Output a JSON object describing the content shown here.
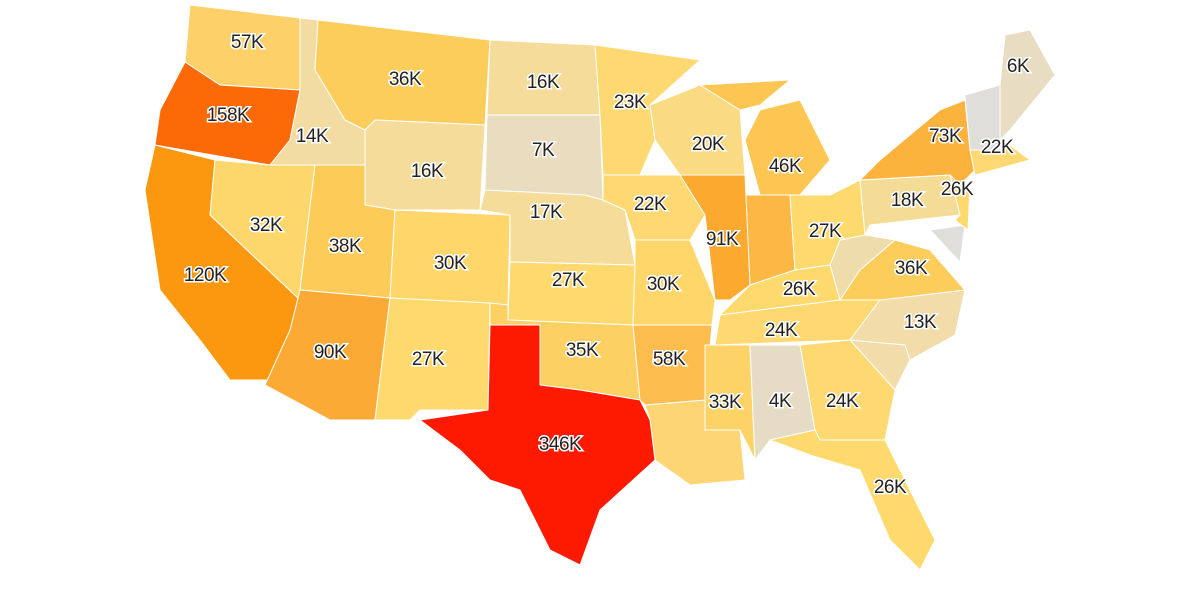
{
  "map": {
    "regions": [
      {
        "value": 57000,
        "label": "57K",
        "color": "#fdd06a"
      },
      {
        "value": 158000,
        "label": "158K",
        "color": "#fb6a07"
      },
      {
        "value": 120000,
        "label": "120K",
        "color": "#fb980f"
      },
      {
        "value": 14000,
        "label": "14K",
        "color": "#f3dca2"
      },
      {
        "value": 32000,
        "label": "32K",
        "color": "#fed76c"
      },
      {
        "value": 36000,
        "label": "36K",
        "color": "#fdcd5c"
      },
      {
        "value": 16000,
        "label": "16K",
        "color": "#f5dc9a"
      },
      {
        "value": 38000,
        "label": "38K",
        "color": "#fdcb58"
      },
      {
        "value": 30000,
        "label": "30K",
        "color": "#fed66a"
      },
      {
        "value": 90000,
        "label": "90K",
        "color": "#fbab35"
      },
      {
        "value": 27000,
        "label": "27K",
        "color": "#fed96e"
      },
      {
        "value": 16000,
        "label": "16K",
        "color": "#f5dc9a"
      },
      {
        "value": 7000,
        "label": "7K",
        "color": "#eadcbf"
      },
      {
        "value": 17000,
        "label": "17K",
        "color": "#f5dc98"
      },
      {
        "value": 27000,
        "label": "27K",
        "color": "#fed96e"
      },
      {
        "value": 35000,
        "label": "35K",
        "color": "#fdd063"
      },
      {
        "value": 346000,
        "label": "346K",
        "color": "#fe1a00"
      },
      {
        "value": 23000,
        "label": "23K",
        "color": "#fed870"
      },
      {
        "value": 22000,
        "label": "22K",
        "color": "#fdd873"
      },
      {
        "value": 30000,
        "label": "30K",
        "color": "#fed66a"
      },
      {
        "value": 58000,
        "label": "58K",
        "color": "#fdbc4e"
      },
      {
        "value": 20000,
        "label": "20K",
        "color": "#fada82"
      },
      {
        "value": 91000,
        "label": "91K",
        "color": "#fba92f"
      },
      {
        "value": 46000,
        "label": "46K",
        "color": "#fdc552"
      },
      {
        "value": 27000,
        "label": "27K",
        "color": "#fed96e"
      },
      {
        "value": 26000,
        "label": "26K",
        "color": "#fed96e"
      },
      {
        "value": 24000,
        "label": "24K",
        "color": "#fed870"
      },
      {
        "value": 33000,
        "label": "33K",
        "color": "#fdd266"
      },
      {
        "value": 4000,
        "label": "4K",
        "color": "#e6dcc6"
      },
      {
        "value": 24000,
        "label": "24K",
        "color": "#fed870"
      },
      {
        "value": 26000,
        "label": "26K",
        "color": "#fed96e"
      },
      {
        "value": 13000,
        "label": "13K",
        "color": "#f1dcaa"
      },
      {
        "value": 36000,
        "label": "36K",
        "color": "#fdcd5c"
      },
      {
        "value": 18000,
        "label": "18K",
        "color": "#f5dc96"
      },
      {
        "value": 73000,
        "label": "73K",
        "color": "#fcb33e"
      },
      {
        "value": 26000,
        "label": "26K",
        "color": "#fed96e"
      },
      {
        "value": 22000,
        "label": "22K",
        "color": "#fdd873"
      },
      {
        "value": 6000,
        "label": "6K",
        "color": "#e8dcc2"
      }
    ]
  }
}
